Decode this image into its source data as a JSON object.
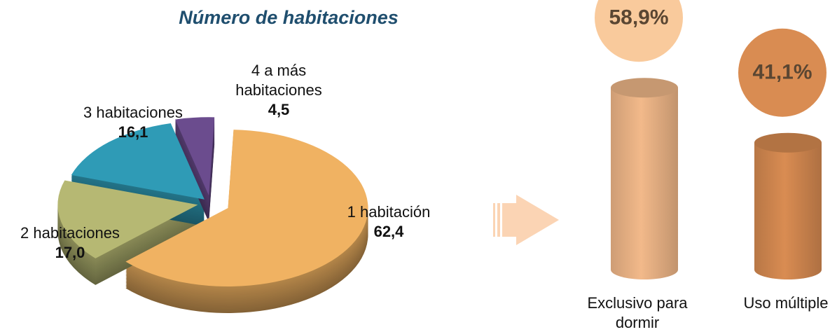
{
  "chart_data": [
    {
      "type": "pie",
      "title": "Número de habitaciones",
      "categories": [
        "1 habitación",
        "2 habitaciones",
        "3 habitaciones",
        "4 a más habitaciones"
      ],
      "values": [
        62.4,
        17.0,
        16.1,
        4.5
      ],
      "value_labels": [
        "62,4",
        "17,0",
        "16,1",
        "4,5"
      ],
      "colors": [
        "#f0b262",
        "#b6b873",
        "#2f9bb6",
        "#6b4c8e"
      ]
    },
    {
      "type": "cylinder",
      "categories": [
        "Exclusivo para dormir",
        "Uso múltiple"
      ],
      "values": [
        58.9,
        41.1
      ],
      "value_labels": [
        "58,9%",
        "41,1%"
      ],
      "colors": [
        "#f2b98a",
        "#d98c52"
      ],
      "label_colors": [
        "#f9ca9c",
        "#d98c52"
      ]
    }
  ]
}
